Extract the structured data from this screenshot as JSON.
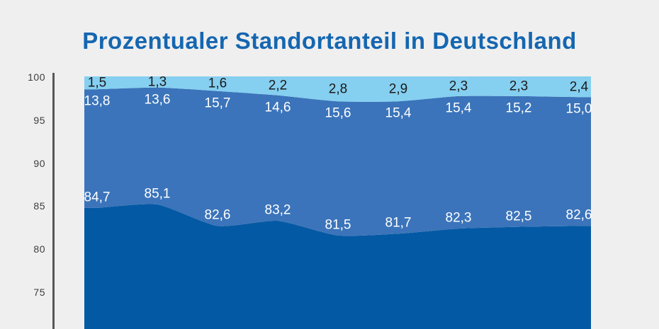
{
  "title": "Prozentualer Standortanteil in Deutschland",
  "colors": {
    "background": "#efefef",
    "title": "#1566b0",
    "axis_line": "#57575a",
    "axis_tick_text": "#3c3c3c",
    "band_bottom": "#0459a4",
    "band_middle": "#3b74ba",
    "band_top": "#85cff0"
  },
  "y_axis": {
    "ticks": [
      {
        "label": "100",
        "value": 100
      },
      {
        "label": "95",
        "value": 95
      },
      {
        "label": "90",
        "value": 90
      },
      {
        "label": "85",
        "value": 85
      },
      {
        "label": "80",
        "value": 80
      },
      {
        "label": "75",
        "value": 75
      }
    ]
  },
  "chart_data": {
    "type": "area",
    "stacked": true,
    "percent_chart": true,
    "title": "Prozentualer Standortanteil in Deutschland",
    "n_points": 9,
    "grid": false,
    "legend": "none",
    "y_ticks": [
      100,
      95,
      90,
      85,
      80,
      75
    ],
    "y_visible_range": [
      70.6,
      100
    ],
    "series": [
      {
        "position": "bottom",
        "color": "#0459a4",
        "label_color": "#ffffff",
        "values": [
          84.7,
          85.1,
          82.6,
          83.2,
          81.5,
          81.7,
          82.3,
          82.5,
          82.6
        ],
        "labels": [
          "84,7",
          "85,1",
          "82,6",
          "83,2",
          "81,5",
          "81,7",
          "82,3",
          "82,5",
          "82,6"
        ]
      },
      {
        "position": "middle",
        "color": "#3b74ba",
        "label_color": "#ffffff",
        "values": [
          13.8,
          13.6,
          15.7,
          14.6,
          15.6,
          15.4,
          15.4,
          15.2,
          15.0
        ],
        "labels": [
          "13,8",
          "13,6",
          "15,7",
          "14,6",
          "15,6",
          "15,4",
          "15,4",
          "15,2",
          "15,0"
        ]
      },
      {
        "position": "top",
        "color": "#85cff0",
        "label_color": "#1a1a1a",
        "values": [
          1.5,
          1.3,
          1.6,
          2.2,
          2.8,
          2.9,
          2.3,
          2.3,
          2.4
        ],
        "labels": [
          "1,5",
          "1,3",
          "1,6",
          "2,2",
          "2,8",
          "2,9",
          "2,3",
          "2,3",
          "2,4"
        ]
      }
    ]
  }
}
